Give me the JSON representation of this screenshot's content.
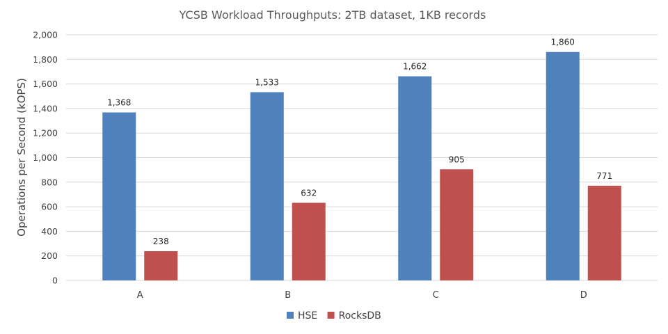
{
  "chart_data": {
    "type": "bar",
    "title": "YCSB Workload Throughputs: 2TB dataset, 1KB records",
    "xlabel": "",
    "ylabel": "Operations per Second (kOPS)",
    "ylim": [
      0,
      2000
    ],
    "ytick_step": 200,
    "yticks": [
      "0",
      "200",
      "400",
      "600",
      "800",
      "1,000",
      "1,200",
      "1,400",
      "1,600",
      "1,800",
      "2,000"
    ],
    "grid": true,
    "legend_position": "bottom",
    "categories": [
      "A",
      "B",
      "C",
      "D"
    ],
    "series": [
      {
        "name": "HSE",
        "color": "#4f81bd",
        "values": [
          1368,
          1533,
          1662,
          1860
        ],
        "labels": [
          "1,368",
          "1,533",
          "1,662",
          "1,860"
        ]
      },
      {
        "name": "RocksDB",
        "color": "#c0504d",
        "values": [
          238,
          632,
          905,
          771
        ],
        "labels": [
          "238",
          "632",
          "905",
          "771"
        ]
      }
    ]
  }
}
